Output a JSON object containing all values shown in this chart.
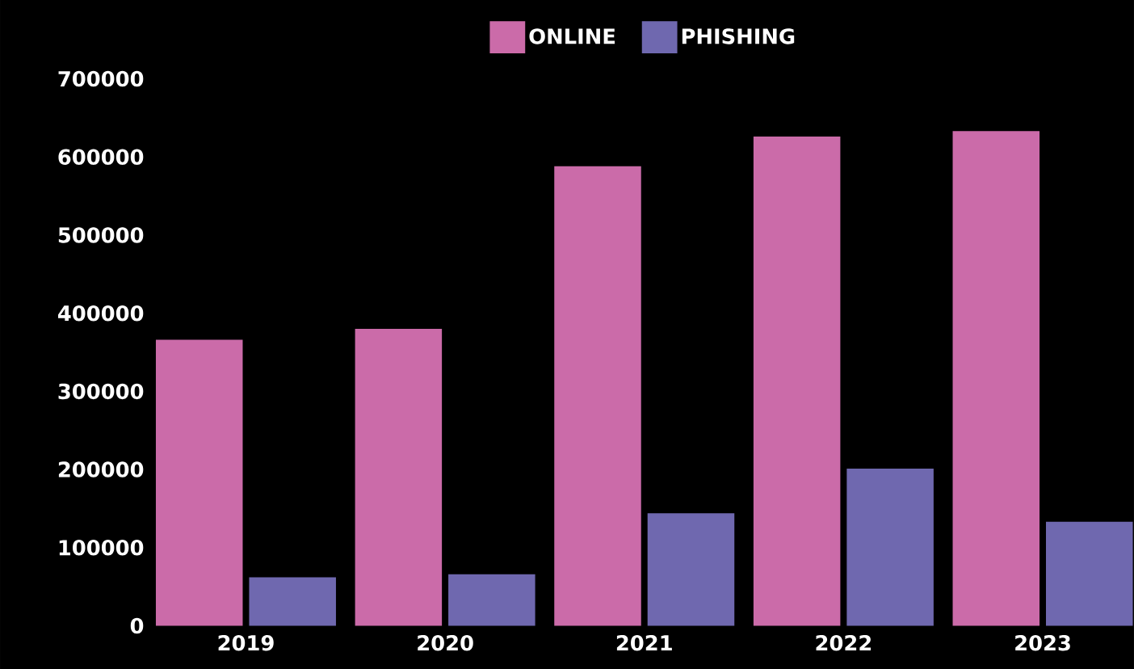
{
  "chart_data": {
    "type": "bar",
    "categories": [
      "2019",
      "2020",
      "2021",
      "2022",
      "2023"
    ],
    "series": [
      {
        "name": "ONLINE",
        "color": "#cb6ba9",
        "values": [
          366000,
          380000,
          588000,
          626000,
          633000
        ]
      },
      {
        "name": "PHISHING",
        "color": "#6f68af",
        "values": [
          62000,
          66000,
          144000,
          201000,
          133000
        ]
      }
    ],
    "ylim": [
      0,
      700000
    ],
    "yticks": [
      0,
      100000,
      200000,
      300000,
      400000,
      500000,
      600000,
      700000
    ],
    "grid": false,
    "legend": "top"
  }
}
